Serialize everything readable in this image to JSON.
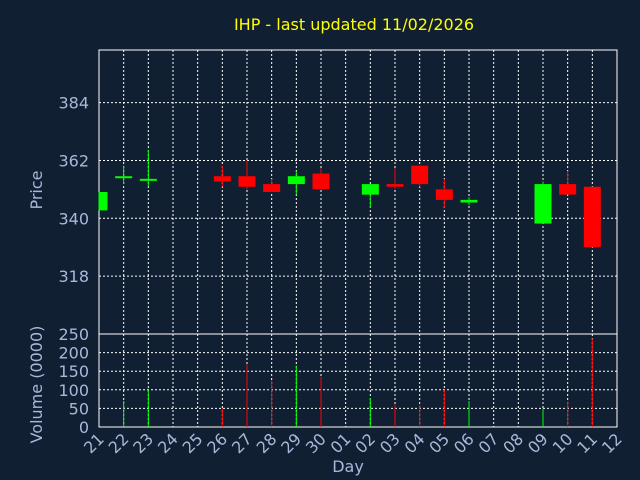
{
  "colors": {
    "background": "#111f33",
    "panel_border": "#ffffff",
    "grid": "#ffffff",
    "title": "#ffff00",
    "tick_text": "#a8b8d8",
    "axis_label": "#a8b8d8",
    "up": "#00ff00",
    "down": "#ff0000"
  },
  "chart_data": [
    {
      "type": "candlestick",
      "title": "IHP - last updated 11/02/2026",
      "ylabel": "Price",
      "ylim": [
        296,
        404
      ],
      "yticks": [
        318,
        340,
        362,
        384
      ],
      "grid": true,
      "categories": [
        "21",
        "22",
        "23",
        "24",
        "25",
        "26",
        "27",
        "28",
        "29",
        "30",
        "01",
        "02",
        "03",
        "04",
        "05",
        "06",
        "07",
        "08",
        "09",
        "10",
        "11",
        "12"
      ],
      "candles": [
        {
          "x": "21",
          "open": 343,
          "high": 350,
          "low": 343,
          "close": 350
        },
        {
          "x": "22",
          "open": 356,
          "high": 360,
          "low": 353,
          "close": 356
        },
        {
          "x": "23",
          "open": 355,
          "high": 366,
          "low": 352,
          "close": 355
        },
        {
          "x": "26",
          "open": 356,
          "high": 360,
          "low": 352,
          "close": 354
        },
        {
          "x": "27",
          "open": 356,
          "high": 362,
          "low": 351,
          "close": 352
        },
        {
          "x": "28",
          "open": 353,
          "high": 355,
          "low": 350,
          "close": 350
        },
        {
          "x": "29",
          "open": 353,
          "high": 358,
          "low": 349,
          "close": 356
        },
        {
          "x": "30",
          "open": 357,
          "high": 359,
          "low": 351,
          "close": 351
        },
        {
          "x": "02",
          "open": 349,
          "high": 353,
          "low": 344,
          "close": 353
        },
        {
          "x": "03",
          "open": 353,
          "high": 359,
          "low": 351,
          "close": 352
        },
        {
          "x": "04",
          "open": 360,
          "high": 360,
          "low": 352,
          "close": 353
        },
        {
          "x": "05",
          "open": 351,
          "high": 355,
          "low": 344,
          "close": 347
        },
        {
          "x": "06",
          "open": 346,
          "high": 348,
          "low": 345,
          "close": 347
        },
        {
          "x": "09",
          "open": 338,
          "high": 354,
          "low": 338,
          "close": 353
        },
        {
          "x": "10",
          "open": 353,
          "high": 358,
          "low": 349,
          "close": 349
        },
        {
          "x": "11",
          "open": 352,
          "high": 352,
          "low": 329,
          "close": 329
        }
      ]
    },
    {
      "type": "bar",
      "ylabel": "Volume (0000)",
      "ylim": [
        0,
        250
      ],
      "yticks": [
        0,
        50,
        100,
        150,
        200,
        250
      ],
      "xlabel": "Day",
      "grid": true,
      "categories": [
        "21",
        "22",
        "23",
        "24",
        "25",
        "26",
        "27",
        "28",
        "29",
        "30",
        "01",
        "02",
        "03",
        "04",
        "05",
        "06",
        "07",
        "08",
        "09",
        "10",
        "11",
        "12"
      ],
      "volumes": [
        {
          "x": "21",
          "value": 0
        },
        {
          "x": "22",
          "value": 70
        },
        {
          "x": "23",
          "value": 100
        },
        {
          "x": "26",
          "value": 50
        },
        {
          "x": "27",
          "value": 168
        },
        {
          "x": "28",
          "value": 125
        },
        {
          "x": "29",
          "value": 165
        },
        {
          "x": "30",
          "value": 135
        },
        {
          "x": "02",
          "value": 78
        },
        {
          "x": "03",
          "value": 60
        },
        {
          "x": "04",
          "value": 58
        },
        {
          "x": "05",
          "value": 100
        },
        {
          "x": "06",
          "value": 70
        },
        {
          "x": "09",
          "value": 48
        },
        {
          "x": "10",
          "value": 68
        },
        {
          "x": "11",
          "value": 238
        }
      ]
    }
  ]
}
